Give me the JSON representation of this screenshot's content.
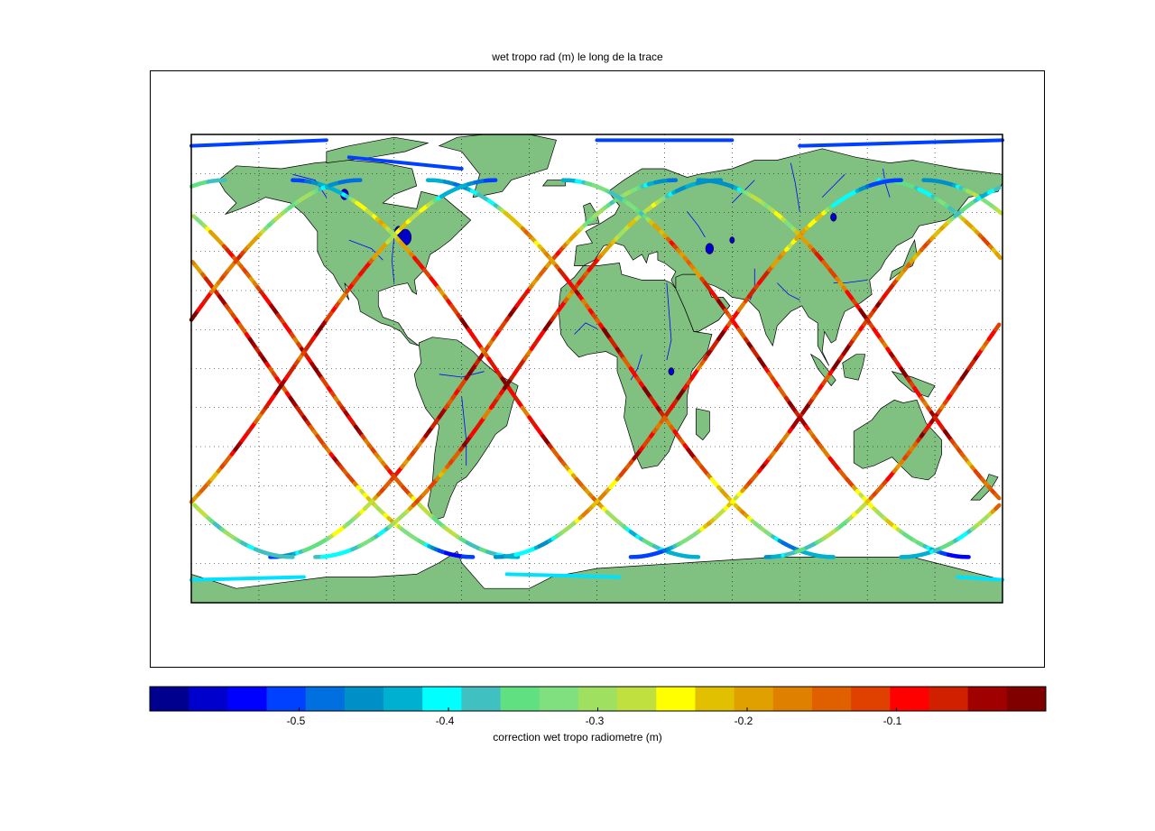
{
  "figure": {
    "title": "wet tropo rad (m) le long de la trace"
  },
  "map": {
    "projection": "equirectangular",
    "land_color": "#80c080",
    "coast_color": "#000000",
    "river_color": "#0000ff",
    "lake_color": "#0000cc",
    "grid": "dotted",
    "continents": [
      "North America",
      "South America",
      "Europe",
      "Africa",
      "Asia",
      "Australia",
      "Antarctica",
      "Greenland"
    ]
  },
  "colorbar": {
    "label": "correction wet tropo radiometre (m)",
    "ticks": [
      "-0.5",
      "-0.4",
      "-0.3",
      "-0.2",
      "-0.1"
    ],
    "tick_values": [
      -0.5,
      -0.4,
      -0.3,
      -0.2,
      -0.1
    ],
    "range": [
      -0.6,
      0.0
    ],
    "colormap": "jet",
    "colors": [
      "#00008f",
      "#0000cc",
      "#0000ff",
      "#0040ff",
      "#0070e0",
      "#0090c8",
      "#00b0d0",
      "#00ffff",
      "#40c0c0",
      "#60e080",
      "#80e080",
      "#a0e060",
      "#c0e040",
      "#ffff00",
      "#e0c000",
      "#e0a000",
      "#e08000",
      "#e06000",
      "#e04000",
      "#ff0000",
      "#d02000",
      "#a00000",
      "#800000"
    ]
  },
  "chart_data": {
    "type": "map-track",
    "title": "wet tropo rad (m) le long de la trace",
    "colorbar_label": "correction wet tropo radiometre (m)",
    "value_range": [
      -0.6,
      0.0
    ],
    "tracks": [
      {
        "lon0": -140,
        "amplitude_lat": 66,
        "values_note": "descending/ascending ground tracks"
      },
      {
        "lon0": -120,
        "amplitude_lat": 66
      },
      {
        "lon0": -40,
        "amplitude_lat": 66
      },
      {
        "lon0": 20,
        "amplitude_lat": 66
      },
      {
        "lon0": 80,
        "amplitude_lat": 66
      },
      {
        "lon0": 140,
        "amplitude_lat": 66
      }
    ]
  }
}
